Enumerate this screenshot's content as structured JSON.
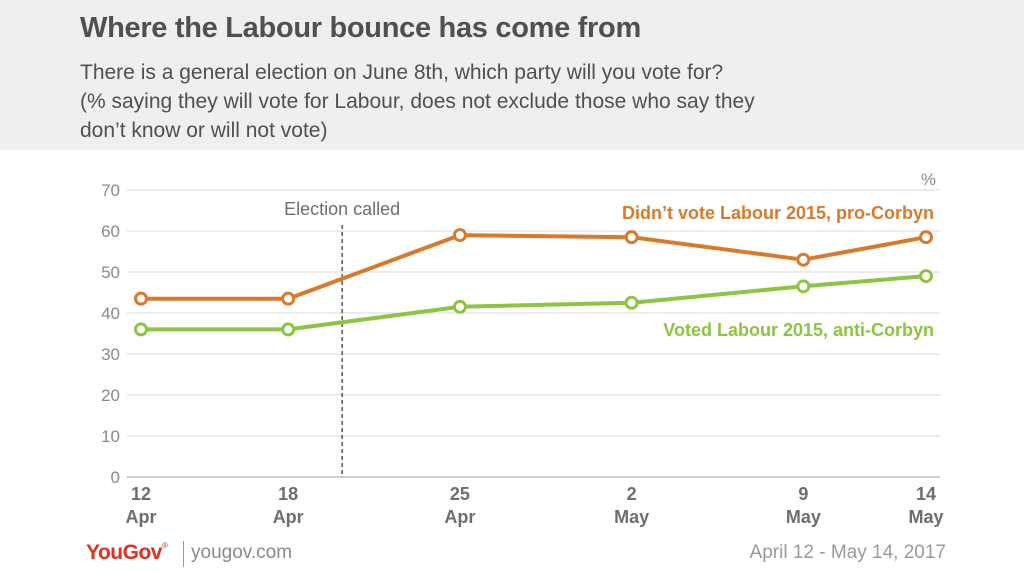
{
  "header": {
    "title": "Where the Labour bounce has come from",
    "subtitle_lines": [
      "There is a general election on June 8th, which party will you vote for?",
      "(% saying they will vote for Labour, does not exclude those who say they",
      "don’t know or will not vote)"
    ]
  },
  "footer": {
    "brand": "YouGov",
    "brand_mark": "®",
    "site": "yougov.com",
    "date_range": "April 12 - May 14, 2017"
  },
  "chart_data": {
    "type": "line",
    "unit_label": "%",
    "ylim": [
      0,
      70
    ],
    "yticks": [
      0,
      10,
      20,
      30,
      40,
      50,
      60,
      70
    ],
    "grid": true,
    "x": [
      {
        "day": "12",
        "month": "Apr",
        "date": "2017-04-12"
      },
      {
        "day": "18",
        "month": "Apr",
        "date": "2017-04-18"
      },
      {
        "day": "25",
        "month": "Apr",
        "date": "2017-04-25"
      },
      {
        "day": "2",
        "month": "May",
        "date": "2017-05-02"
      },
      {
        "day": "9",
        "month": "May",
        "date": "2017-05-09"
      },
      {
        "day": "14",
        "month": "May",
        "date": "2017-05-14"
      }
    ],
    "annotation": {
      "label": "Election called",
      "date": "2017-04-18",
      "offset_days": 2.2
    },
    "series": [
      {
        "name": "Didn’t vote Labour 2015, pro-Corbyn",
        "color": "#d97a2b",
        "values": [
          43.5,
          43.5,
          59,
          58.5,
          53,
          58.5
        ]
      },
      {
        "name": "Voted Labour 2015, anti-Corbyn",
        "color": "#8dc441",
        "values": [
          36,
          36,
          41.5,
          42.5,
          46.5,
          49
        ]
      }
    ]
  }
}
